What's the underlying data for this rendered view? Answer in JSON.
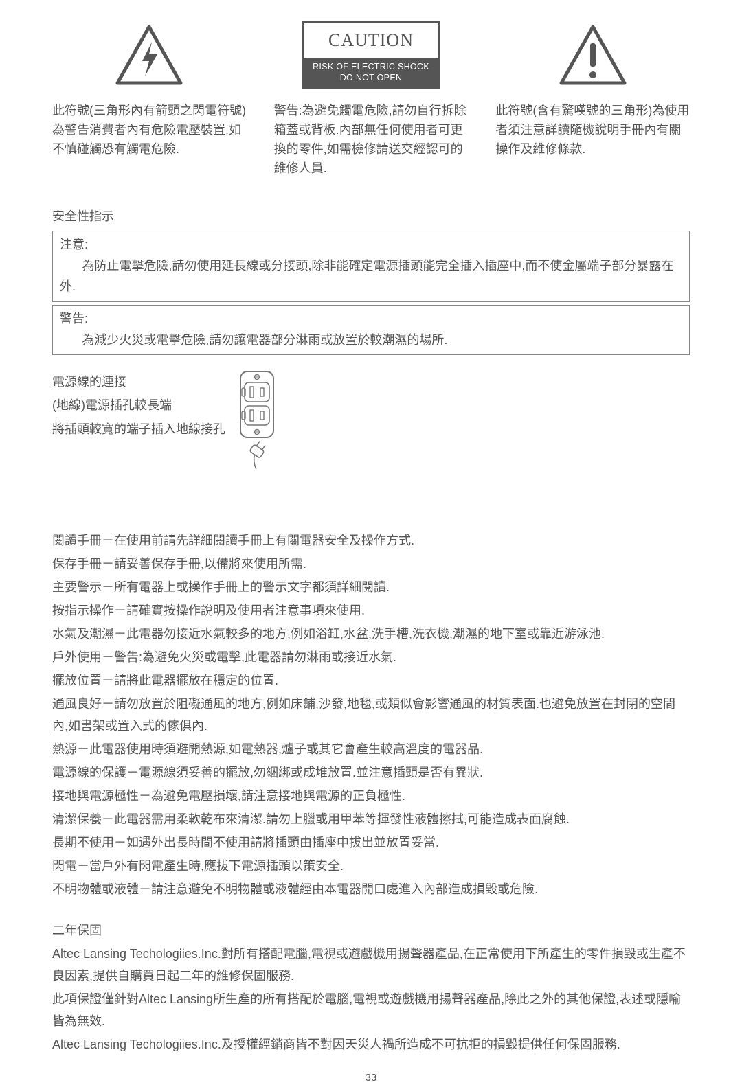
{
  "symbols": {
    "lightning": {
      "caption": "此符號(三角形內有箭頭之閃電符號)為警告消費者內有危險電壓裝置.如不慎碰觸恐有觸電危險."
    },
    "caution": {
      "title": "CAUTION",
      "line1": "RISK OF ELECTRIC SHOCK",
      "line2": "DO NOT OPEN",
      "caption": "警告:為避免觸電危險,請勿自行拆除箱蓋或背板.內部無任何使用者可更換的零件,如需檢修請送交經認可的維修人員."
    },
    "exclaim": {
      "caption": "此符號(含有驚嘆號的三角形)為使用者須注意詳讀隨機說明手冊內有關操作及維修條款."
    }
  },
  "safety_heading": "安全性指示",
  "box_note": {
    "label": "注意:",
    "body": "為防止電擊危險,請勿使用延長線或分接頭,除非能確定電源插頭能完全插入插座中,而不使金屬端子部分暴露在外."
  },
  "box_warn": {
    "label": "警告:",
    "body": "為減少火災或電擊危險,請勿讓電器部分淋雨或放置於較潮濕的場所."
  },
  "outlet": {
    "l1": "電源線的連接",
    "l2": "(地線)電源插孔較長端",
    "l3": "將插頭較寬的端子插入地線接孔"
  },
  "instructions": [
    "閱讀手冊－在使用前請先詳細閱讀手冊上有關電器安全及操作方式.",
    "保存手冊－請妥善保存手冊,以備將來使用所需.",
    "主要警示－所有電器上或操作手冊上的警示文字都須詳細閱讀.",
    "按指示操作－請確實按操作說明及使用者注意事項來使用.",
    "水氣及潮濕－此電器勿接近水氣較多的地方,例如浴缸,水盆,洗手槽,洗衣機,潮濕的地下室或靠近游泳池.",
    "戶外使用－警告:為避免火災或電擊,此電器請勿淋雨或接近水氣.",
    "擺放位置－請將此電器擺放在穩定的位置.",
    "通風良好－請勿放置於阻礙通風的地方,例如床鋪,沙發,地毯,或類似會影響通風的材質表面.也避免放置在封閉的空間內,如書架或置入式的傢俱內.",
    "熱源－此電器使用時須避開熱源,如電熱器,爐子或其它會產生較高溫度的電器品.",
    "電源線的保護－電源線須妥善的擺放,勿綑綁或成堆放置.並注意插頭是否有異狀.",
    "接地與電源極性－為避免電壓損壞,請注意接地與電源的正負極性.",
    "清潔保養－此電器需用柔軟乾布來清潔.請勿上臘或用甲苯等揮發性液體擦拭,可能造成表面腐蝕.",
    "長期不使用－如遇外出長時間不使用請將插頭由插座中拔出並放置妥當.",
    "閃電－當戶外有閃電產生時,應拔下電源插頭以策安全.",
    "不明物體或液體－請注意避免不明物體或液體經由本電器開口處進入內部造成損毀或危險."
  ],
  "warranty": {
    "heading": "二年保固",
    "p1": "Altec Lansing Techologiies.Inc.對所有搭配電腦,電視或遊戲機用揚聲器產品,在正常使用下所產生的零件損毀或生產不良因素,提供自購買日起二年的維修保固服務.",
    "p2": "此項保證僅針對Altec Lansing所生產的所有搭配於電腦,電視或遊戲機用揚聲器產品,除此之外的其他保證,表述或隱喻皆為無效.",
    "p3": "Altec Lansing Techologiies.Inc.及授權經銷商皆不對因天災人禍所造成不可抗拒的損毀提供任何保固服務."
  },
  "page_number": "33"
}
